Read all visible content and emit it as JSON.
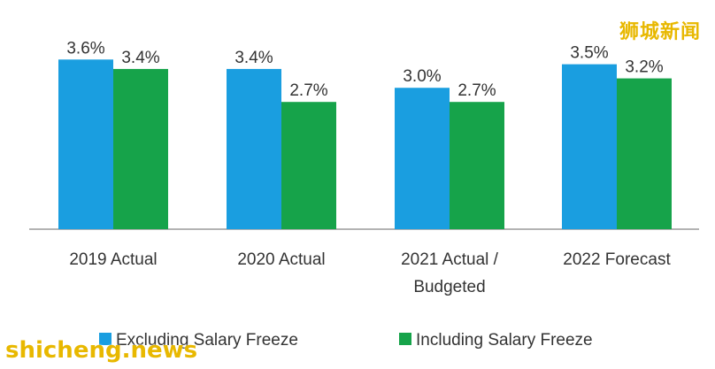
{
  "chart_data": {
    "type": "bar",
    "categories": [
      [
        "2019 Actual"
      ],
      [
        "2020 Actual"
      ],
      [
        "2021 Actual /",
        "Budgeted"
      ],
      [
        "2022 Forecast"
      ]
    ],
    "series": [
      {
        "name": "Excluding Salary Freeze",
        "color": "#1a9ee0",
        "values": [
          3.6,
          3.4,
          3.0,
          3.5
        ]
      },
      {
        "name": "Including Salary Freeze",
        "color": "#16a34a",
        "values": [
          3.4,
          2.7,
          2.7,
          3.2
        ]
      }
    ],
    "value_labels": [
      [
        "3.6%",
        "3.4%"
      ],
      [
        "3.4%",
        "2.7%"
      ],
      [
        "3.0%",
        "2.7%"
      ],
      [
        "3.5%",
        "3.2%"
      ]
    ],
    "ylim": [
      0,
      4.3
    ],
    "title": "",
    "xlabel": "",
    "ylabel": "",
    "grid": false,
    "legend_position": "bottom"
  },
  "watermarks": {
    "cn": "狮城新闻",
    "en": "shicheng.news"
  }
}
